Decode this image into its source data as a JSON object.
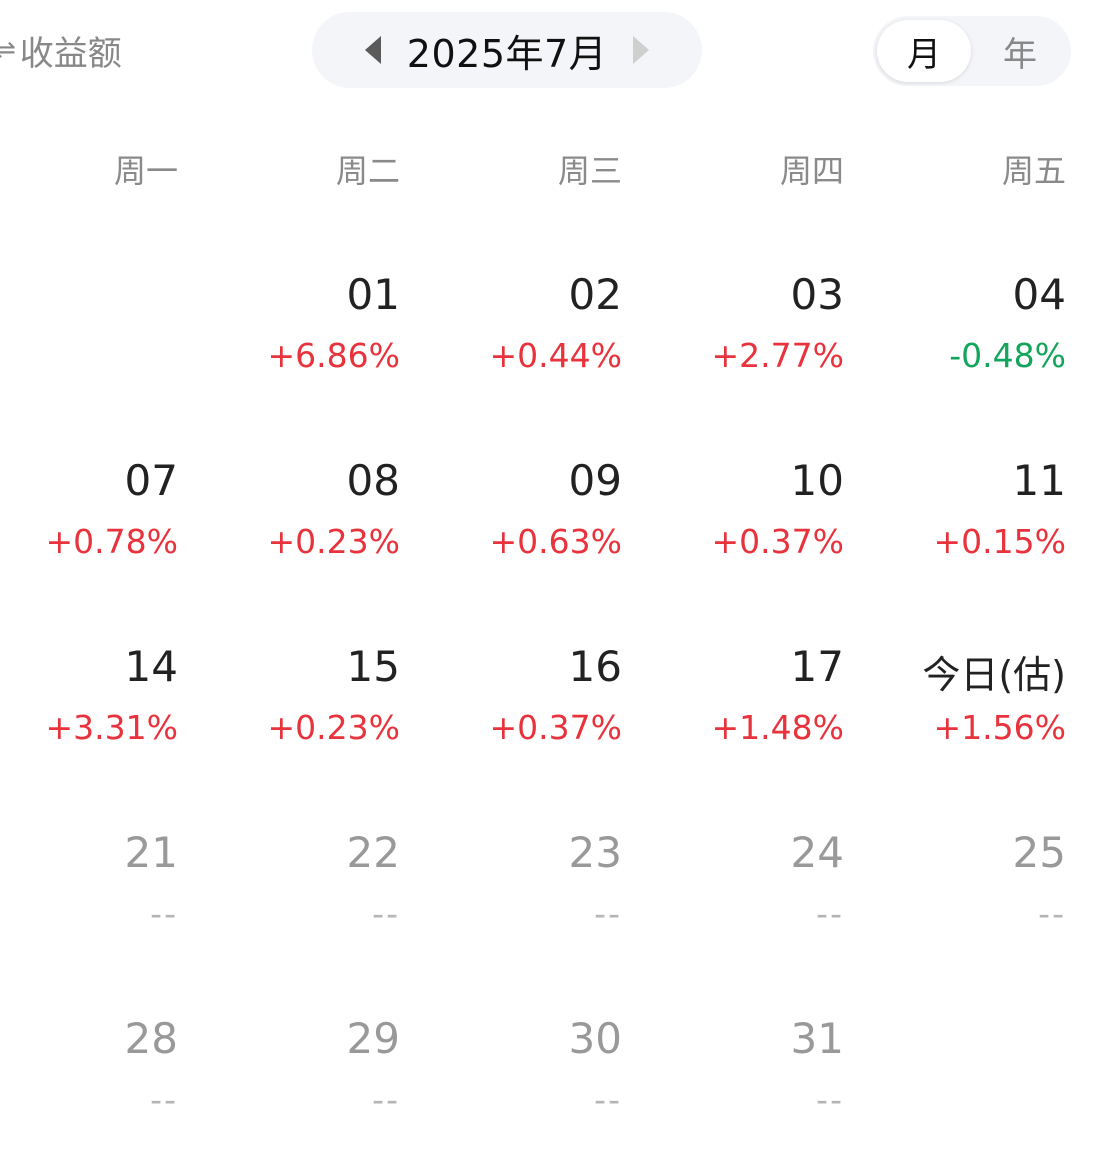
{
  "header": {
    "metric_toggle_label": "收益额",
    "swap_glyph": "⇌",
    "month_title": "2025年7月",
    "seg_month": "月",
    "seg_year": "年"
  },
  "weekdays": [
    "周一",
    "周二",
    "周三",
    "周四",
    "周五"
  ],
  "rows": [
    [
      null,
      {
        "day": "01",
        "pct": "+6.86%",
        "trend": "up"
      },
      {
        "day": "02",
        "pct": "+0.44%",
        "trend": "up"
      },
      {
        "day": "03",
        "pct": "+2.77%",
        "trend": "up"
      },
      {
        "day": "04",
        "pct": "-0.48%",
        "trend": "down"
      }
    ],
    [
      {
        "day": "07",
        "pct": "+0.78%",
        "trend": "up"
      },
      {
        "day": "08",
        "pct": "+0.23%",
        "trend": "up"
      },
      {
        "day": "09",
        "pct": "+0.63%",
        "trend": "up"
      },
      {
        "day": "10",
        "pct": "+0.37%",
        "trend": "up"
      },
      {
        "day": "11",
        "pct": "+0.15%",
        "trend": "up"
      }
    ],
    [
      {
        "day": "14",
        "pct": "+3.31%",
        "trend": "up"
      },
      {
        "day": "15",
        "pct": "+0.23%",
        "trend": "up"
      },
      {
        "day": "16",
        "pct": "+0.37%",
        "trend": "up"
      },
      {
        "day": "17",
        "pct": "+1.48%",
        "trend": "up"
      },
      {
        "day": "今日(估)",
        "pct": "+1.56%",
        "trend": "up",
        "today": true
      }
    ],
    [
      {
        "day": "21",
        "pct": "--",
        "trend": "none"
      },
      {
        "day": "22",
        "pct": "--",
        "trend": "none"
      },
      {
        "day": "23",
        "pct": "--",
        "trend": "none"
      },
      {
        "day": "24",
        "pct": "--",
        "trend": "none"
      },
      {
        "day": "25",
        "pct": "--",
        "trend": "none"
      }
    ],
    [
      {
        "day": "28",
        "pct": "--",
        "trend": "none"
      },
      {
        "day": "29",
        "pct": "--",
        "trend": "none"
      },
      {
        "day": "30",
        "pct": "--",
        "trend": "none"
      },
      {
        "day": "31",
        "pct": "--",
        "trend": "none"
      },
      null
    ]
  ],
  "colors": {
    "up": "#e8323c",
    "down": "#12a55b",
    "none": "#b5b5b5"
  }
}
